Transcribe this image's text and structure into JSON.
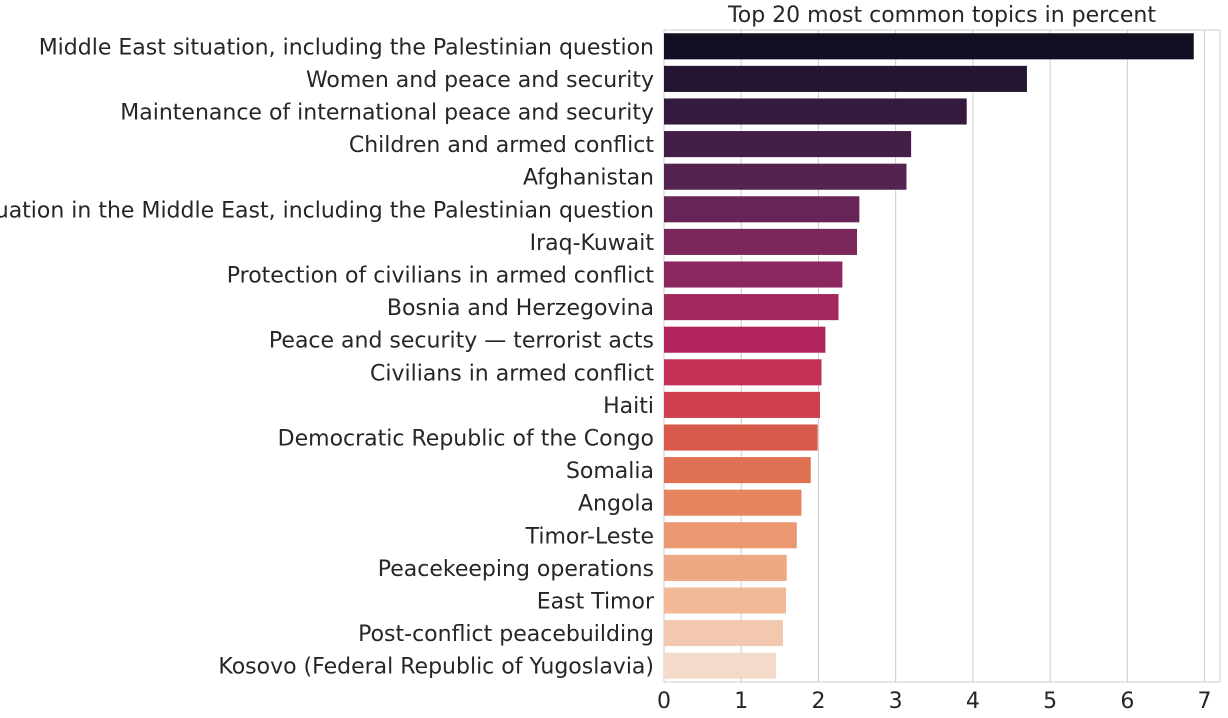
{
  "chart_data": {
    "type": "bar",
    "orientation": "horizontal",
    "title": "Top 20 most common topics in percent",
    "xlabel": "",
    "ylabel": "",
    "xlim": [
      0,
      7.2
    ],
    "xticks": [
      "0",
      "1",
      "2",
      "3",
      "4",
      "5",
      "6",
      "7"
    ],
    "grid": "vertical",
    "palette": "rocket",
    "categories": [
      "Middle East situation, including the Palestinian question",
      "Women and peace and security",
      "Maintenance of international peace and security",
      "Children and armed conflict",
      "Afghanistan",
      "The situation in the Middle East, including the Palestinian question",
      "Iraq-Kuwait",
      "Protection of civilians in armed conflict",
      "Bosnia and Herzegovina",
      "Peace and security — terrorist acts",
      "Civilians in armed conflict",
      "Haiti",
      "Democratic Republic of the Congo",
      "Somalia",
      "Angola",
      "Timor-Leste",
      "Peacekeeping operations",
      "East Timor",
      "Post-conflict peacebuilding",
      "Kosovo (Federal Republic of Yugoslavia)"
    ],
    "values": [
      6.86,
      4.7,
      3.92,
      3.2,
      3.14,
      2.53,
      2.5,
      2.31,
      2.26,
      2.09,
      2.04,
      2.02,
      1.99,
      1.9,
      1.78,
      1.72,
      1.59,
      1.58,
      1.54,
      1.45
    ],
    "colors": [
      "#130e21",
      "#241632",
      "#331a3f",
      "#431f48",
      "#552350",
      "#672557",
      "#7a275c",
      "#8c285f",
      "#a0285f",
      "#b2245d",
      "#c42f55",
      "#cd3f4f",
      "#d85a4a",
      "#e07052",
      "#e68660",
      "#eb9870",
      "#eea984",
      "#f1b996",
      "#f2c9ae",
      "#f4dac8"
    ]
  }
}
